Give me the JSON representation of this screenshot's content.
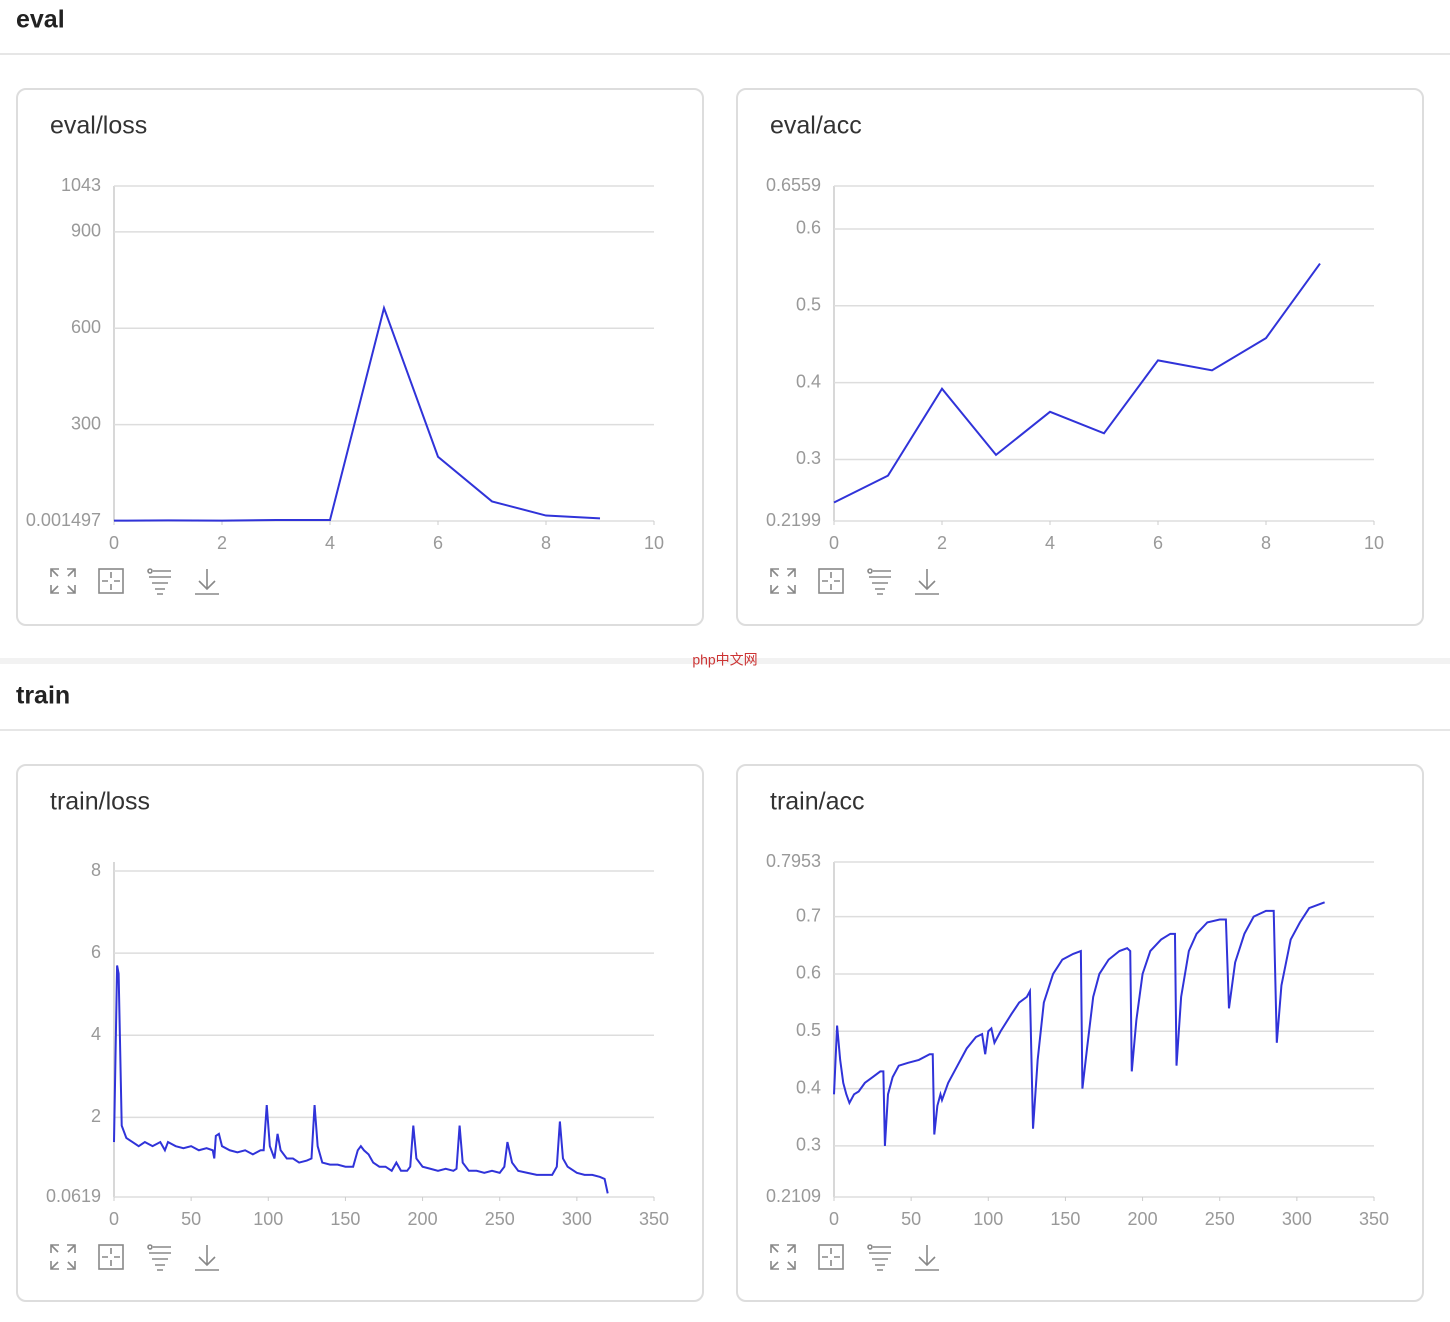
{
  "watermark": "php中文网",
  "sections": [
    {
      "title": "eval",
      "charts": [
        {
          "type": "line",
          "title": "eval/loss",
          "color": "#3033d9",
          "grid": true,
          "x": [
            0,
            1,
            2,
            3,
            4,
            5,
            6,
            7,
            8,
            9
          ],
          "values": [
            1,
            2,
            1,
            3,
            3,
            663,
            200,
            61,
            17,
            8
          ],
          "xlim": [
            0,
            10
          ],
          "xticks": [
            0,
            2,
            4,
            6,
            8,
            10
          ],
          "ylim": [
            0.001497,
            1043
          ],
          "yticks": [
            0.001497,
            300,
            600,
            900,
            1043
          ]
        },
        {
          "type": "line",
          "title": "eval/acc",
          "color": "#3033d9",
          "grid": true,
          "x": [
            0,
            1,
            2,
            3,
            4,
            5,
            6,
            7,
            8,
            9
          ],
          "values": [
            0.244,
            0.279,
            0.392,
            0.306,
            0.362,
            0.334,
            0.429,
            0.416,
            0.458,
            0.555
          ],
          "xlim": [
            0,
            10
          ],
          "xticks": [
            0,
            2,
            4,
            6,
            8,
            10
          ],
          "ylim": [
            0.2199,
            0.6559
          ],
          "yticks": [
            0.2199,
            0.3,
            0.4,
            0.5,
            0.6,
            0.6559
          ]
        }
      ]
    },
    {
      "title": "train",
      "charts": [
        {
          "type": "line",
          "title": "train/loss",
          "color": "#3033d9",
          "grid": true,
          "x": [
            0,
            2,
            3,
            5,
            8,
            12,
            16,
            20,
            25,
            30,
            33,
            35,
            40,
            45,
            50,
            55,
            60,
            64,
            65,
            66,
            68,
            70,
            75,
            80,
            85,
            90,
            95,
            97,
            99,
            101,
            104,
            106,
            108,
            112,
            116,
            120,
            125,
            128,
            130,
            132,
            135,
            140,
            145,
            150,
            155,
            158,
            160,
            162,
            165,
            168,
            172,
            176,
            180,
            183,
            186,
            190,
            192,
            194,
            196,
            200,
            205,
            210,
            215,
            220,
            222,
            224,
            226,
            230,
            235,
            240,
            245,
            250,
            253,
            255,
            258,
            262,
            268,
            274,
            280,
            284,
            287,
            289,
            291,
            294,
            300,
            305,
            310,
            315,
            318,
            320
          ],
          "values": [
            1.4,
            5.7,
            5.5,
            1.8,
            1.5,
            1.4,
            1.3,
            1.4,
            1.3,
            1.4,
            1.2,
            1.4,
            1.3,
            1.25,
            1.3,
            1.2,
            1.25,
            1.2,
            1.0,
            1.55,
            1.6,
            1.3,
            1.2,
            1.15,
            1.2,
            1.1,
            1.2,
            1.2,
            2.3,
            1.3,
            1.0,
            1.6,
            1.2,
            1.0,
            1.0,
            0.9,
            0.95,
            1.0,
            2.3,
            1.3,
            0.9,
            0.85,
            0.85,
            0.8,
            0.8,
            1.2,
            1.3,
            1.2,
            1.1,
            0.9,
            0.8,
            0.8,
            0.7,
            0.9,
            0.7,
            0.7,
            0.8,
            1.8,
            1.0,
            0.8,
            0.75,
            0.7,
            0.75,
            0.7,
            0.75,
            1.8,
            0.9,
            0.7,
            0.7,
            0.65,
            0.7,
            0.65,
            0.8,
            1.4,
            0.9,
            0.7,
            0.65,
            0.6,
            0.6,
            0.6,
            0.8,
            1.9,
            1.0,
            0.8,
            0.65,
            0.6,
            0.6,
            0.55,
            0.5,
            0.15
          ],
          "xlim": [
            0,
            350
          ],
          "xticks": [
            0,
            50,
            100,
            150,
            200,
            250,
            300,
            350
          ],
          "ylim": [
            0.0619,
            8.22
          ],
          "yticks": [
            0.0619,
            2,
            4,
            6,
            8
          ]
        },
        {
          "type": "line",
          "title": "train/acc",
          "color": "#3033d9",
          "grid": true,
          "x": [
            0,
            2,
            4,
            6,
            8,
            10,
            13,
            16,
            20,
            25,
            30,
            32,
            33,
            35,
            38,
            42,
            48,
            55,
            62,
            64,
            65,
            67,
            69,
            70,
            74,
            80,
            86,
            92,
            96,
            98,
            100,
            102,
            104,
            108,
            115,
            120,
            125,
            127,
            129,
            132,
            136,
            142,
            148,
            155,
            160,
            161,
            164,
            168,
            172,
            178,
            185,
            190,
            192,
            193,
            196,
            200,
            205,
            212,
            218,
            221,
            222,
            225,
            230,
            235,
            242,
            250,
            254,
            256,
            260,
            266,
            272,
            280,
            285,
            287,
            290,
            296,
            302,
            308,
            313,
            318
          ],
          "values": [
            0.39,
            0.51,
            0.45,
            0.41,
            0.39,
            0.375,
            0.39,
            0.395,
            0.41,
            0.42,
            0.43,
            0.43,
            0.3,
            0.39,
            0.42,
            0.44,
            0.445,
            0.45,
            0.46,
            0.46,
            0.32,
            0.37,
            0.39,
            0.38,
            0.41,
            0.44,
            0.47,
            0.49,
            0.495,
            0.46,
            0.5,
            0.505,
            0.48,
            0.5,
            0.53,
            0.55,
            0.56,
            0.57,
            0.33,
            0.45,
            0.55,
            0.6,
            0.625,
            0.635,
            0.64,
            0.4,
            0.47,
            0.56,
            0.6,
            0.625,
            0.64,
            0.645,
            0.64,
            0.43,
            0.52,
            0.6,
            0.64,
            0.66,
            0.67,
            0.67,
            0.44,
            0.56,
            0.64,
            0.67,
            0.69,
            0.695,
            0.695,
            0.54,
            0.62,
            0.67,
            0.7,
            0.71,
            0.71,
            0.48,
            0.58,
            0.66,
            0.69,
            0.715,
            0.72,
            0.725
          ],
          "xlim": [
            0,
            350
          ],
          "xticks": [
            0,
            50,
            100,
            150,
            200,
            250,
            300,
            350
          ],
          "ylim": [
            0.2109,
            0.7953
          ],
          "yticks": [
            0.2109,
            0.3,
            0.4,
            0.5,
            0.6,
            0.7,
            0.7953
          ]
        }
      ]
    }
  ]
}
